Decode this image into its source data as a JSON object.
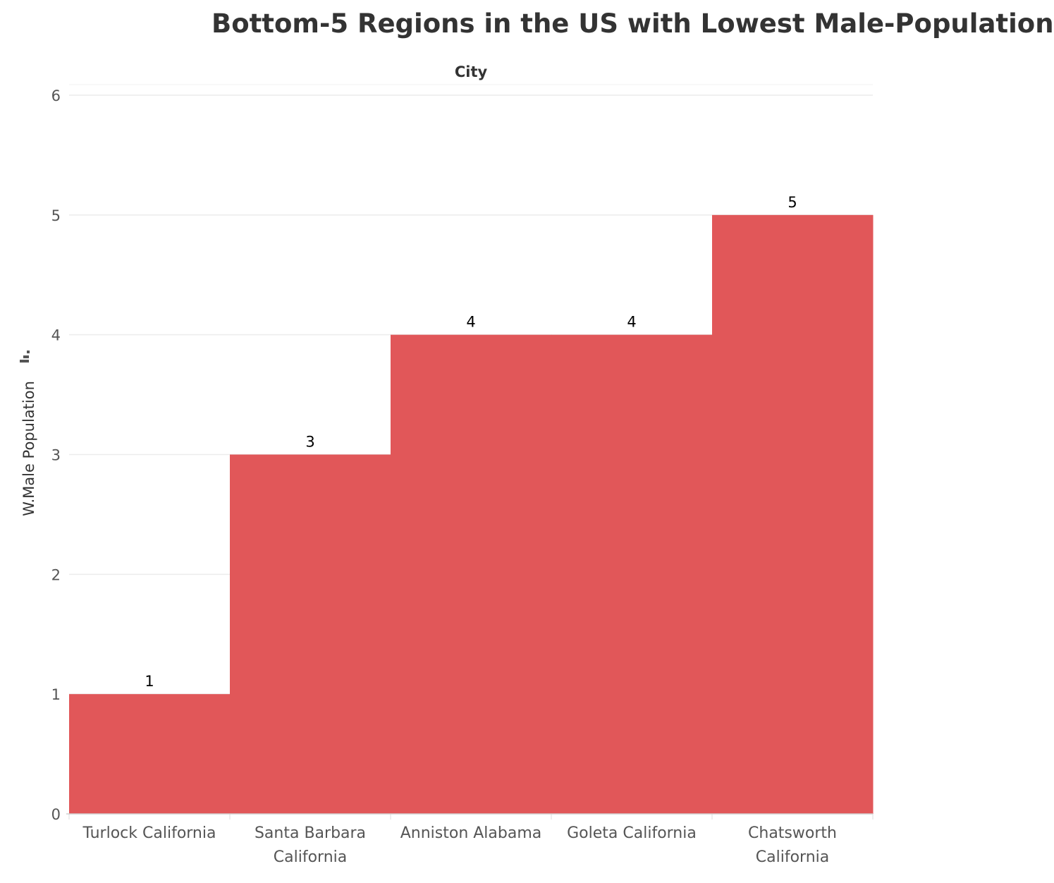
{
  "chart_data": {
    "type": "bar",
    "title": "Bottom-5 Regions in the US with Lowest Male-Population",
    "column_header": "City",
    "ylabel": "W.Male Population",
    "categories": [
      [
        "Turlock California"
      ],
      [
        "Santa Barbara",
        "California"
      ],
      [
        "Anniston Alabama"
      ],
      [
        "Goleta California"
      ],
      [
        "Chatsworth",
        "California"
      ]
    ],
    "values": [
      1,
      3,
      4,
      4,
      5
    ],
    "ylim": [
      0,
      6
    ],
    "yticks": [
      0,
      1,
      2,
      3,
      4,
      5,
      6
    ],
    "grid": true,
    "bar_color": "#e15759"
  }
}
